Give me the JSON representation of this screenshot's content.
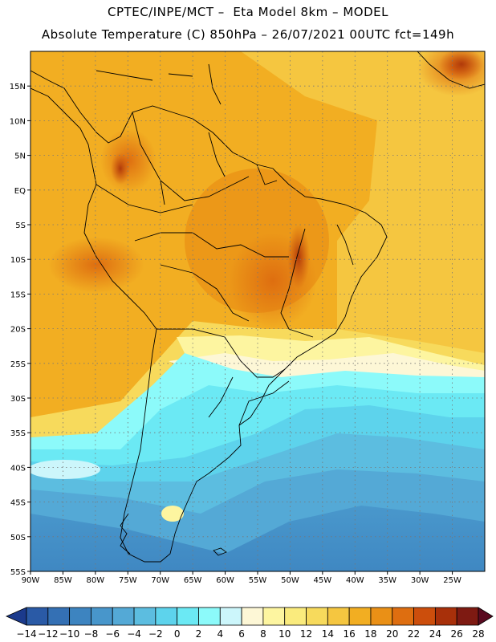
{
  "title_line1": "CPTEC/INPE/MCT –  Eta Model 8km – MODEL",
  "title_line2": "Absolute Temperature (C) 850hPa – 26/07/2021 00UTC fct=149h",
  "map_extent": {
    "lon_min": -90,
    "lon_max": -20,
    "lat_min": -55,
    "lat_max": 20
  },
  "lat_labels": [
    "15N",
    "10N",
    "5N",
    "EQ",
    "5S",
    "10S",
    "15S",
    "20S",
    "25S",
    "30S",
    "35S",
    "40S",
    "45S",
    "50S",
    "55S"
  ],
  "lat_values": [
    15,
    10,
    5,
    0,
    -5,
    -10,
    -15,
    -20,
    -25,
    -30,
    -35,
    -40,
    -45,
    -50,
    -55
  ],
  "lon_labels": [
    "90W",
    "85W",
    "80W",
    "75W",
    "70W",
    "65W",
    "60W",
    "55W",
    "50W",
    "45W",
    "40W",
    "35W",
    "30W",
    "25W"
  ],
  "lon_values": [
    -90,
    -85,
    -80,
    -75,
    -70,
    -65,
    -60,
    -55,
    -50,
    -45,
    -40,
    -35,
    -30,
    -25
  ],
  "colorbar": {
    "labels": [
      "−14",
      "−12",
      "−10",
      "−8",
      "−6",
      "−4",
      "−2",
      "0",
      "2",
      "4",
      "6",
      "8",
      "10",
      "12",
      "14",
      "16",
      "18",
      "20",
      "22",
      "24",
      "26",
      "28"
    ],
    "colors": [
      "#1b3a8c",
      "#2a5aa6",
      "#3470b4",
      "#3d84c0",
      "#4896cb",
      "#54a9d6",
      "#5cbde0",
      "#5dd3ec",
      "#6be9f4",
      "#8cfafa",
      "#ccf6fb",
      "#fdf7d6",
      "#fdf5a0",
      "#faeb7d",
      "#f7da5c",
      "#f5c640",
      "#f2ae22",
      "#ea9016",
      "#de6e10",
      "#cc4e0c",
      "#a8300a",
      "#7e1a12",
      "#5a0a20"
    ]
  }
}
